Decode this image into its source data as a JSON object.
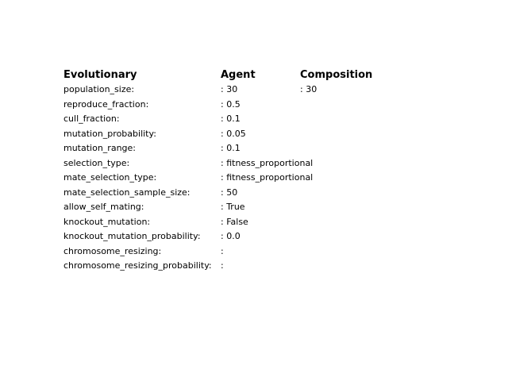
{
  "headers": {
    "evolutionary": "Evolutionary",
    "agent": "Agent",
    "composition": "Composition"
  },
  "rows": [
    {
      "key": "population_size:",
      "agent": ": 30",
      "composition": ": 30"
    },
    {
      "key": "reproduce_fraction:",
      "agent": ": 0.5",
      "composition": ""
    },
    {
      "key": "cull_fraction:",
      "agent": ": 0.1",
      "composition": ""
    },
    {
      "key": "mutation_probability:",
      "agent": ": 0.05",
      "composition": ""
    },
    {
      "key": "mutation_range:",
      "agent": ": 0.1",
      "composition": ""
    },
    {
      "key": "selection_type:",
      "agent": ": fitness_proportional",
      "composition": ""
    },
    {
      "key": "mate_selection_type:",
      "agent": ": fitness_proportional",
      "composition": ""
    },
    {
      "key": "mate_selection_sample_size:",
      "agent": ": 50",
      "composition": ""
    },
    {
      "key": "allow_self_mating:",
      "agent": ": True",
      "composition": ""
    },
    {
      "key": "knockout_mutation:",
      "agent": ": False",
      "composition": ""
    },
    {
      "key": "knockout_mutation_probability:",
      "agent": ": 0.0",
      "composition": ""
    },
    {
      "key": "chromosome_resizing:",
      "agent": ":",
      "composition": ""
    },
    {
      "key": "chromosome_resizing_probability:",
      "agent": ":",
      "composition": ""
    }
  ]
}
